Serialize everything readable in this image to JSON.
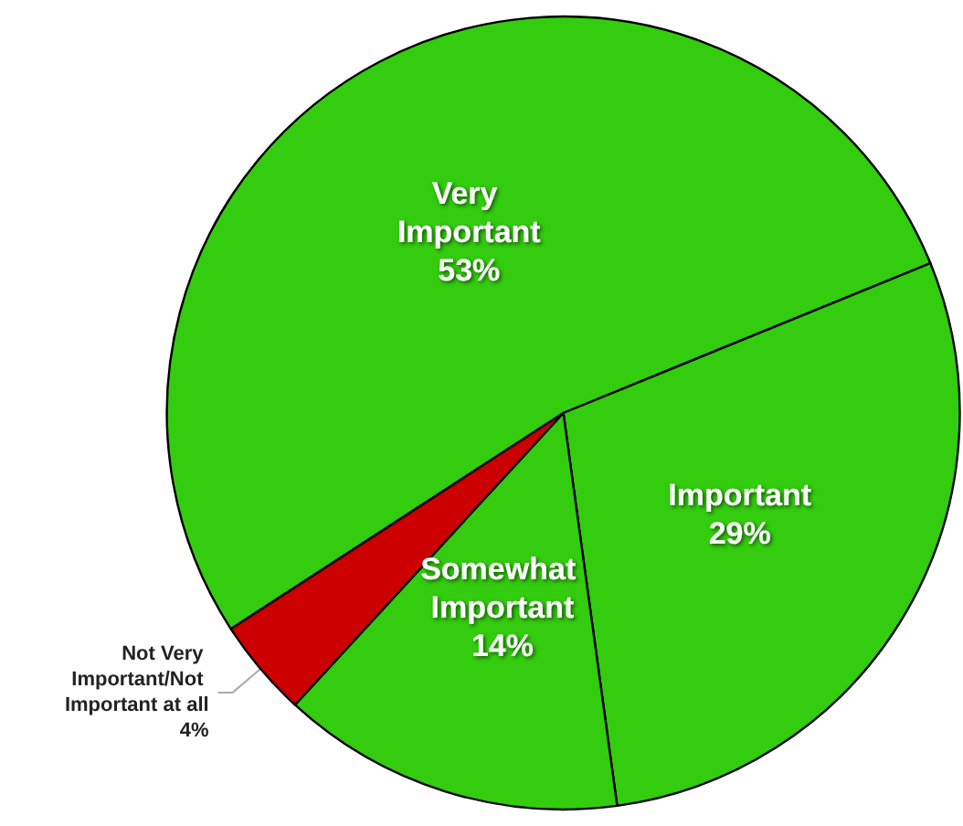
{
  "chart_data": {
    "type": "pie",
    "categories": [
      "Very Important",
      "Important",
      "Somewhat Important",
      "Not Very Important/Not Important at all"
    ],
    "values": [
      53,
      29,
      14,
      4
    ],
    "colors": [
      "#33cc0f",
      "#33cc0f",
      "#33cc0f",
      "#cc0000"
    ],
    "value_labels": [
      "53%",
      "29%",
      "14%",
      "4%"
    ],
    "legend": false
  }
}
